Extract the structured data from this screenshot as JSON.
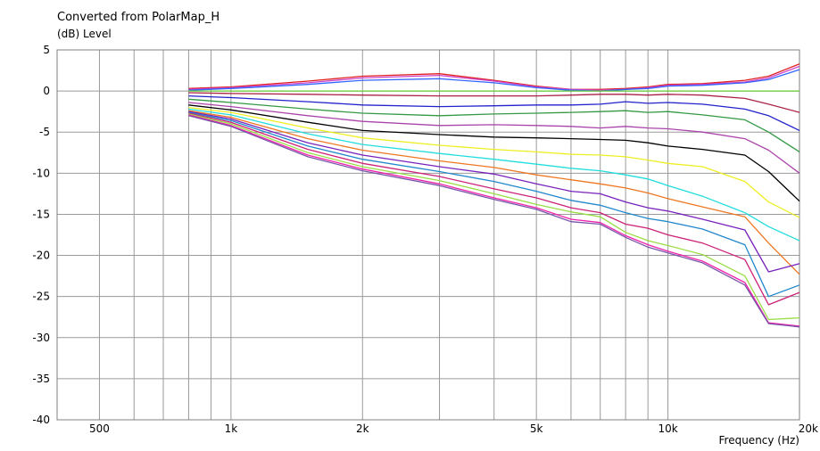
{
  "chart_data": {
    "type": "line",
    "title": "Converted from PolarMap_H",
    "ylabel": "(dB)  Level",
    "xlabel": "Frequency  (Hz)",
    "x_scale": "log",
    "xlim": [
      400,
      20000
    ],
    "ylim": [
      -40,
      5
    ],
    "grid": true,
    "x_ticks": [
      {
        "value": 500,
        "label": "500"
      },
      {
        "value": 1000,
        "label": "1k"
      },
      {
        "value": 2000,
        "label": "2k"
      },
      {
        "value": 5000,
        "label": "5k"
      },
      {
        "value": 10000,
        "label": "10k"
      },
      {
        "value": 20000,
        "label": "20k"
      }
    ],
    "y_ticks": [
      5,
      0,
      -5,
      -10,
      -15,
      -20,
      -25,
      -30,
      -35,
      -40
    ],
    "x": [
      800,
      1000,
      1500,
      2000,
      3000,
      4000,
      5000,
      6000,
      7000,
      8000,
      9000,
      10000,
      12000,
      15000,
      17000,
      20000
    ],
    "series": [
      {
        "color": "#e02020",
        "values": [
          0.3,
          0.5,
          1.2,
          1.8,
          2.1,
          1.3,
          0.6,
          0.2,
          0.2,
          0.3,
          0.5,
          0.8,
          0.9,
          1.3,
          1.8,
          3.3
        ]
      },
      {
        "color": "#cc44cc",
        "values": [
          0.2,
          0.4,
          1.0,
          1.6,
          1.9,
          1.2,
          0.5,
          0.2,
          0.1,
          0.2,
          0.4,
          0.7,
          0.8,
          1.1,
          1.6,
          3.0
        ]
      },
      {
        "color": "#3366ff",
        "values": [
          0.1,
          0.3,
          0.8,
          1.3,
          1.5,
          1.0,
          0.4,
          0.1,
          0.0,
          0.2,
          0.3,
          0.6,
          0.7,
          1.0,
          1.4,
          2.6
        ]
      },
      {
        "color": "#66cc33",
        "values": [
          0.0,
          0.0,
          0.0,
          0.0,
          0.0,
          0.0,
          0.0,
          0.0,
          0.0,
          0.0,
          0.0,
          0.0,
          0.0,
          0.0,
          0.0,
          0.0
        ]
      },
      {
        "color": "#aa2244",
        "values": [
          -0.2,
          -0.3,
          -0.4,
          -0.5,
          -0.6,
          -0.6,
          -0.6,
          -0.5,
          -0.4,
          -0.4,
          -0.5,
          -0.4,
          -0.5,
          -0.9,
          -1.6,
          -2.6
        ]
      },
      {
        "color": "#2222cc",
        "values": [
          -0.6,
          -0.8,
          -1.3,
          -1.7,
          -1.9,
          -1.8,
          -1.7,
          -1.7,
          -1.6,
          -1.3,
          -1.5,
          -1.4,
          -1.6,
          -2.2,
          -3.0,
          -4.8
        ]
      },
      {
        "color": "#339944",
        "values": [
          -1.0,
          -1.4,
          -2.2,
          -2.7,
          -3.0,
          -2.8,
          -2.7,
          -2.6,
          -2.5,
          -2.4,
          -2.6,
          -2.5,
          -2.9,
          -3.5,
          -5.0,
          -7.4
        ]
      },
      {
        "color": "#aa44aa",
        "values": [
          -1.4,
          -1.9,
          -3.0,
          -3.7,
          -4.2,
          -4.1,
          -4.2,
          -4.3,
          -4.5,
          -4.3,
          -4.5,
          -4.6,
          -5.0,
          -5.8,
          -7.2,
          -10.0
        ]
      },
      {
        "color": "#000000",
        "values": [
          -1.7,
          -2.3,
          -3.8,
          -4.8,
          -5.3,
          -5.6,
          -5.7,
          -5.8,
          -5.9,
          -6.0,
          -6.3,
          -6.7,
          -7.1,
          -7.8,
          -9.8,
          -13.4
        ]
      },
      {
        "color": "#eeee22",
        "values": [
          -2.0,
          -2.6,
          -4.5,
          -5.7,
          -6.6,
          -7.1,
          -7.4,
          -7.7,
          -7.8,
          -8.0,
          -8.4,
          -8.8,
          -9.2,
          -11.0,
          -13.5,
          -15.4
        ]
      },
      {
        "color": "#22dddd",
        "values": [
          -2.2,
          -2.9,
          -5.2,
          -6.5,
          -7.6,
          -8.3,
          -8.9,
          -9.4,
          -9.7,
          -10.2,
          -10.7,
          -11.5,
          -12.8,
          -14.8,
          -16.5,
          -18.2
        ]
      },
      {
        "color": "#ee7722",
        "values": [
          -2.4,
          -3.2,
          -5.8,
          -7.2,
          -8.5,
          -9.3,
          -10.2,
          -10.8,
          -11.3,
          -11.8,
          -12.4,
          -13.1,
          -14.1,
          -15.3,
          -18.5,
          -22.3
        ]
      },
      {
        "color": "#7722bb",
        "values": [
          -2.5,
          -3.4,
          -6.3,
          -7.8,
          -9.2,
          -10.1,
          -11.3,
          -12.2,
          -12.5,
          -13.5,
          -14.2,
          -14.6,
          -15.6,
          -16.9,
          -22.0,
          -21.0
        ]
      },
      {
        "color": "#2288cc",
        "values": [
          -2.6,
          -3.6,
          -6.7,
          -8.3,
          -9.8,
          -11.0,
          -12.2,
          -13.3,
          -13.9,
          -14.8,
          -15.5,
          -15.9,
          -16.8,
          -18.7,
          -25.0,
          -23.6
        ]
      },
      {
        "color": "#cc2277",
        "values": [
          -2.7,
          -3.8,
          -7.1,
          -8.8,
          -10.4,
          -11.9,
          -13.0,
          -14.2,
          -14.8,
          -16.2,
          -16.7,
          -17.5,
          -18.5,
          -20.5,
          -26.0,
          -24.5
        ]
      },
      {
        "color": "#99dd44",
        "values": [
          -2.8,
          -4.0,
          -7.5,
          -9.2,
          -10.9,
          -12.5,
          -13.8,
          -14.7,
          -15.3,
          -17.2,
          -18.2,
          -18.8,
          -19.9,
          -22.5,
          -27.8,
          -27.6
        ]
      },
      {
        "color": "#ee22aa",
        "values": [
          -2.9,
          -4.2,
          -7.8,
          -9.5,
          -11.3,
          -13.0,
          -14.2,
          -15.6,
          -16.0,
          -17.6,
          -18.7,
          -19.5,
          -20.7,
          -23.3,
          -28.2,
          -28.6
        ]
      },
      {
        "color": "#7755aa",
        "values": [
          -3.0,
          -4.3,
          -8.0,
          -9.7,
          -11.5,
          -13.2,
          -14.4,
          -15.9,
          -16.2,
          -17.8,
          -19.0,
          -19.7,
          -20.9,
          -23.6,
          -28.3,
          -28.7
        ]
      }
    ]
  }
}
